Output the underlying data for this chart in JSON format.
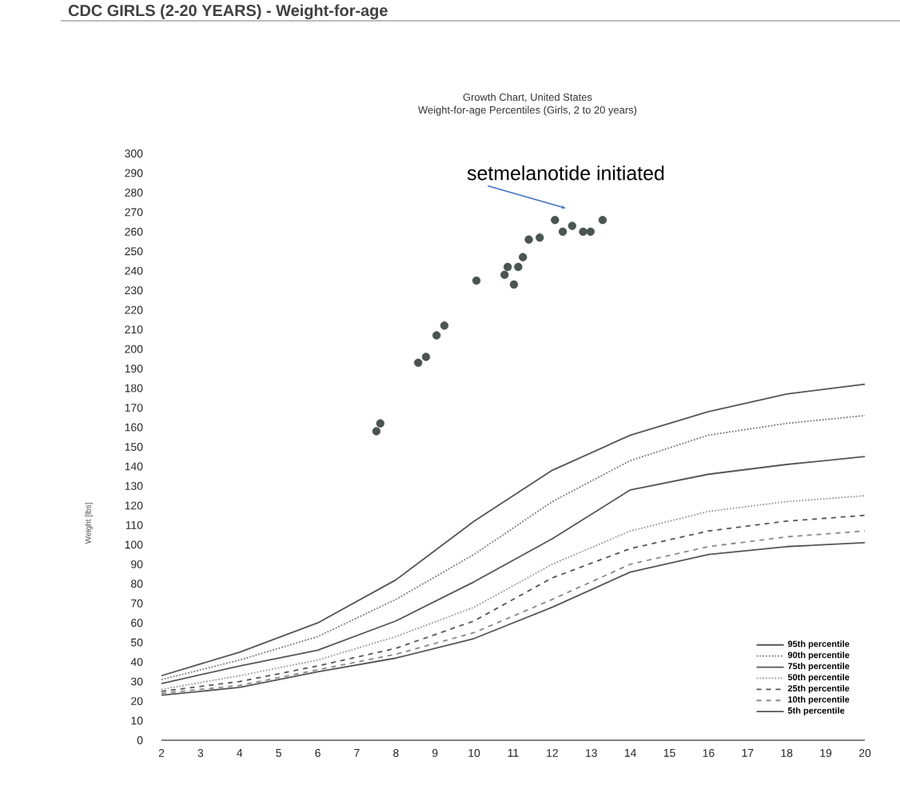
{
  "chart_data": {
    "type": "line",
    "title": "CDC GIRLS (2-20 YEARS) - Weight-for-age",
    "subtitle": "Growth Chart, United States",
    "ylabel": "Weight [lbs]",
    "annotations": [
      "Weight-for-age Percentiles (Girls, 2 to 20 years)",
      {
        "text": "setmelanotide initiated",
        "x": 12.35,
        "y": 272
      }
    ],
    "xlim": [
      2,
      20
    ],
    "ylim": [
      0,
      300
    ],
    "xticks": [
      2,
      3,
      4,
      5,
      6,
      7,
      8,
      9,
      10,
      11,
      12,
      13,
      14,
      15,
      16,
      17,
      18,
      19,
      20
    ],
    "yticks": [
      0,
      10,
      20,
      30,
      40,
      50,
      60,
      70,
      80,
      90,
      100,
      110,
      120,
      130,
      140,
      150,
      160,
      170,
      180,
      190,
      200,
      210,
      220,
      230,
      240,
      250,
      260,
      270,
      280,
      290,
      300
    ],
    "grid": false,
    "legend": "bottom right",
    "series": [
      {
        "type": "scatter",
        "marker": "circle",
        "color": "#4a5550",
        "x": [
          7.5,
          7.6,
          8.57,
          8.77,
          9.04,
          9.24,
          10.06,
          10.78,
          10.86,
          11.02,
          11.13,
          11.25,
          11.4,
          11.68,
          12.07,
          12.27,
          12.51,
          12.79,
          12.98,
          13.29
        ],
        "values": [
          158,
          162,
          193,
          196,
          207,
          212,
          235,
          238,
          242,
          233,
          242,
          247,
          256,
          257,
          266,
          260,
          263,
          260,
          260,
          266
        ]
      },
      {
        "name": "95th percentile",
        "color": "#555555",
        "line_style": "solid",
        "x": [
          2,
          4,
          6,
          8,
          10,
          12,
          14,
          16,
          18,
          20
        ],
        "values": [
          33,
          45,
          60,
          82,
          112,
          138,
          156,
          168,
          177,
          182
        ]
      },
      {
        "name": "90th percentile",
        "color": "#777777",
        "line_style": "dotted",
        "x": [
          2,
          4,
          6,
          8,
          10,
          12,
          14,
          16,
          18,
          20
        ],
        "values": [
          31,
          41,
          53,
          72,
          95,
          122,
          143,
          156,
          162,
          166
        ]
      },
      {
        "name": "75th percentile",
        "color": "#555555",
        "line_style": "solid",
        "x": [
          2,
          4,
          6,
          8,
          10,
          12,
          14,
          16,
          18,
          20
        ],
        "values": [
          29,
          38,
          46,
          61,
          81,
          103,
          128,
          136,
          141,
          145
        ]
      },
      {
        "name": "50th percentile",
        "color": "#999999",
        "line_style": "dotted",
        "x": [
          2,
          4,
          6,
          8,
          10,
          12,
          14,
          16,
          18,
          20
        ],
        "values": [
          26,
          33,
          41,
          53,
          68,
          90,
          107,
          117,
          122,
          125
        ]
      },
      {
        "name": "25th percentile",
        "color": "#555555",
        "line_style": "dashed",
        "x": [
          2,
          4,
          6,
          8,
          10,
          12,
          14,
          16,
          18,
          20
        ],
        "values": [
          25,
          30,
          38,
          47,
          61,
          83,
          98,
          107,
          112,
          115
        ]
      },
      {
        "name": "10th percentile",
        "color": "#888888",
        "line_style": "dashed",
        "x": [
          2,
          4,
          6,
          8,
          10,
          12,
          14,
          16,
          18,
          20
        ],
        "values": [
          24,
          28,
          36,
          44,
          55,
          72,
          90,
          99,
          104,
          107
        ]
      },
      {
        "name": "5th percentile",
        "color": "#555555",
        "line_style": "solid",
        "x": [
          2,
          4,
          6,
          8,
          10,
          12,
          14,
          16,
          18,
          20
        ],
        "values": [
          23,
          27,
          35,
          42,
          52,
          68,
          86,
          95,
          99,
          101
        ]
      }
    ]
  }
}
